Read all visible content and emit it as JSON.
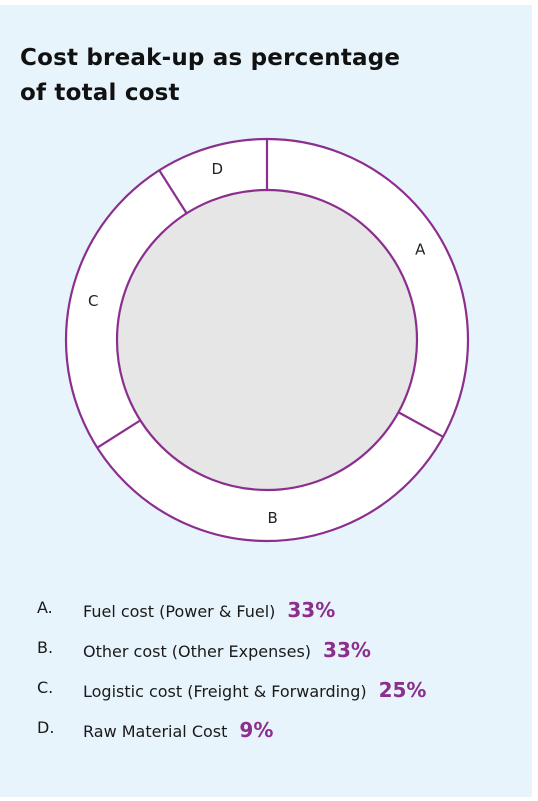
{
  "chart_data": {
    "type": "pie",
    "title": "Cost break-up as percentage of total cost",
    "title_lines": [
      "Cost break-up as percentage",
      "of total cost"
    ],
    "slices": [
      {
        "letter": "A",
        "label": "Fuel cost (Power & Fuel)",
        "value": 33,
        "value_label": "33%"
      },
      {
        "letter": "B",
        "label": "Other cost (Other Expenses)",
        "value": 33,
        "value_label": "33%"
      },
      {
        "letter": "C",
        "label": "Logistic cost (Freight & Forwarding)",
        "value": 25,
        "value_label": "25%"
      },
      {
        "letter": "D",
        "label": "Raw Material Cost",
        "value": 9,
        "value_label": "9%"
      }
    ],
    "legend_placement": "bottom",
    "colors": {
      "ring_stroke": "#8c2e8e",
      "ring_fill": "#ffffff",
      "center_fill": "#e6e6e6",
      "value_text": "#8c2e8e",
      "background": "#e7f4fb"
    }
  },
  "legend": [
    {
      "letter": "A.",
      "label": "Fuel cost (Power & Fuel)",
      "value": "33%"
    },
    {
      "letter": "B.",
      "label": "Other cost (Other Expenses)",
      "value": "33%"
    },
    {
      "letter": "C.",
      "label": "Logistic cost (Freight & Forwarding)",
      "value": "25%"
    },
    {
      "letter": "D.",
      "label": "Raw Material Cost",
      "value": "9%"
    }
  ]
}
